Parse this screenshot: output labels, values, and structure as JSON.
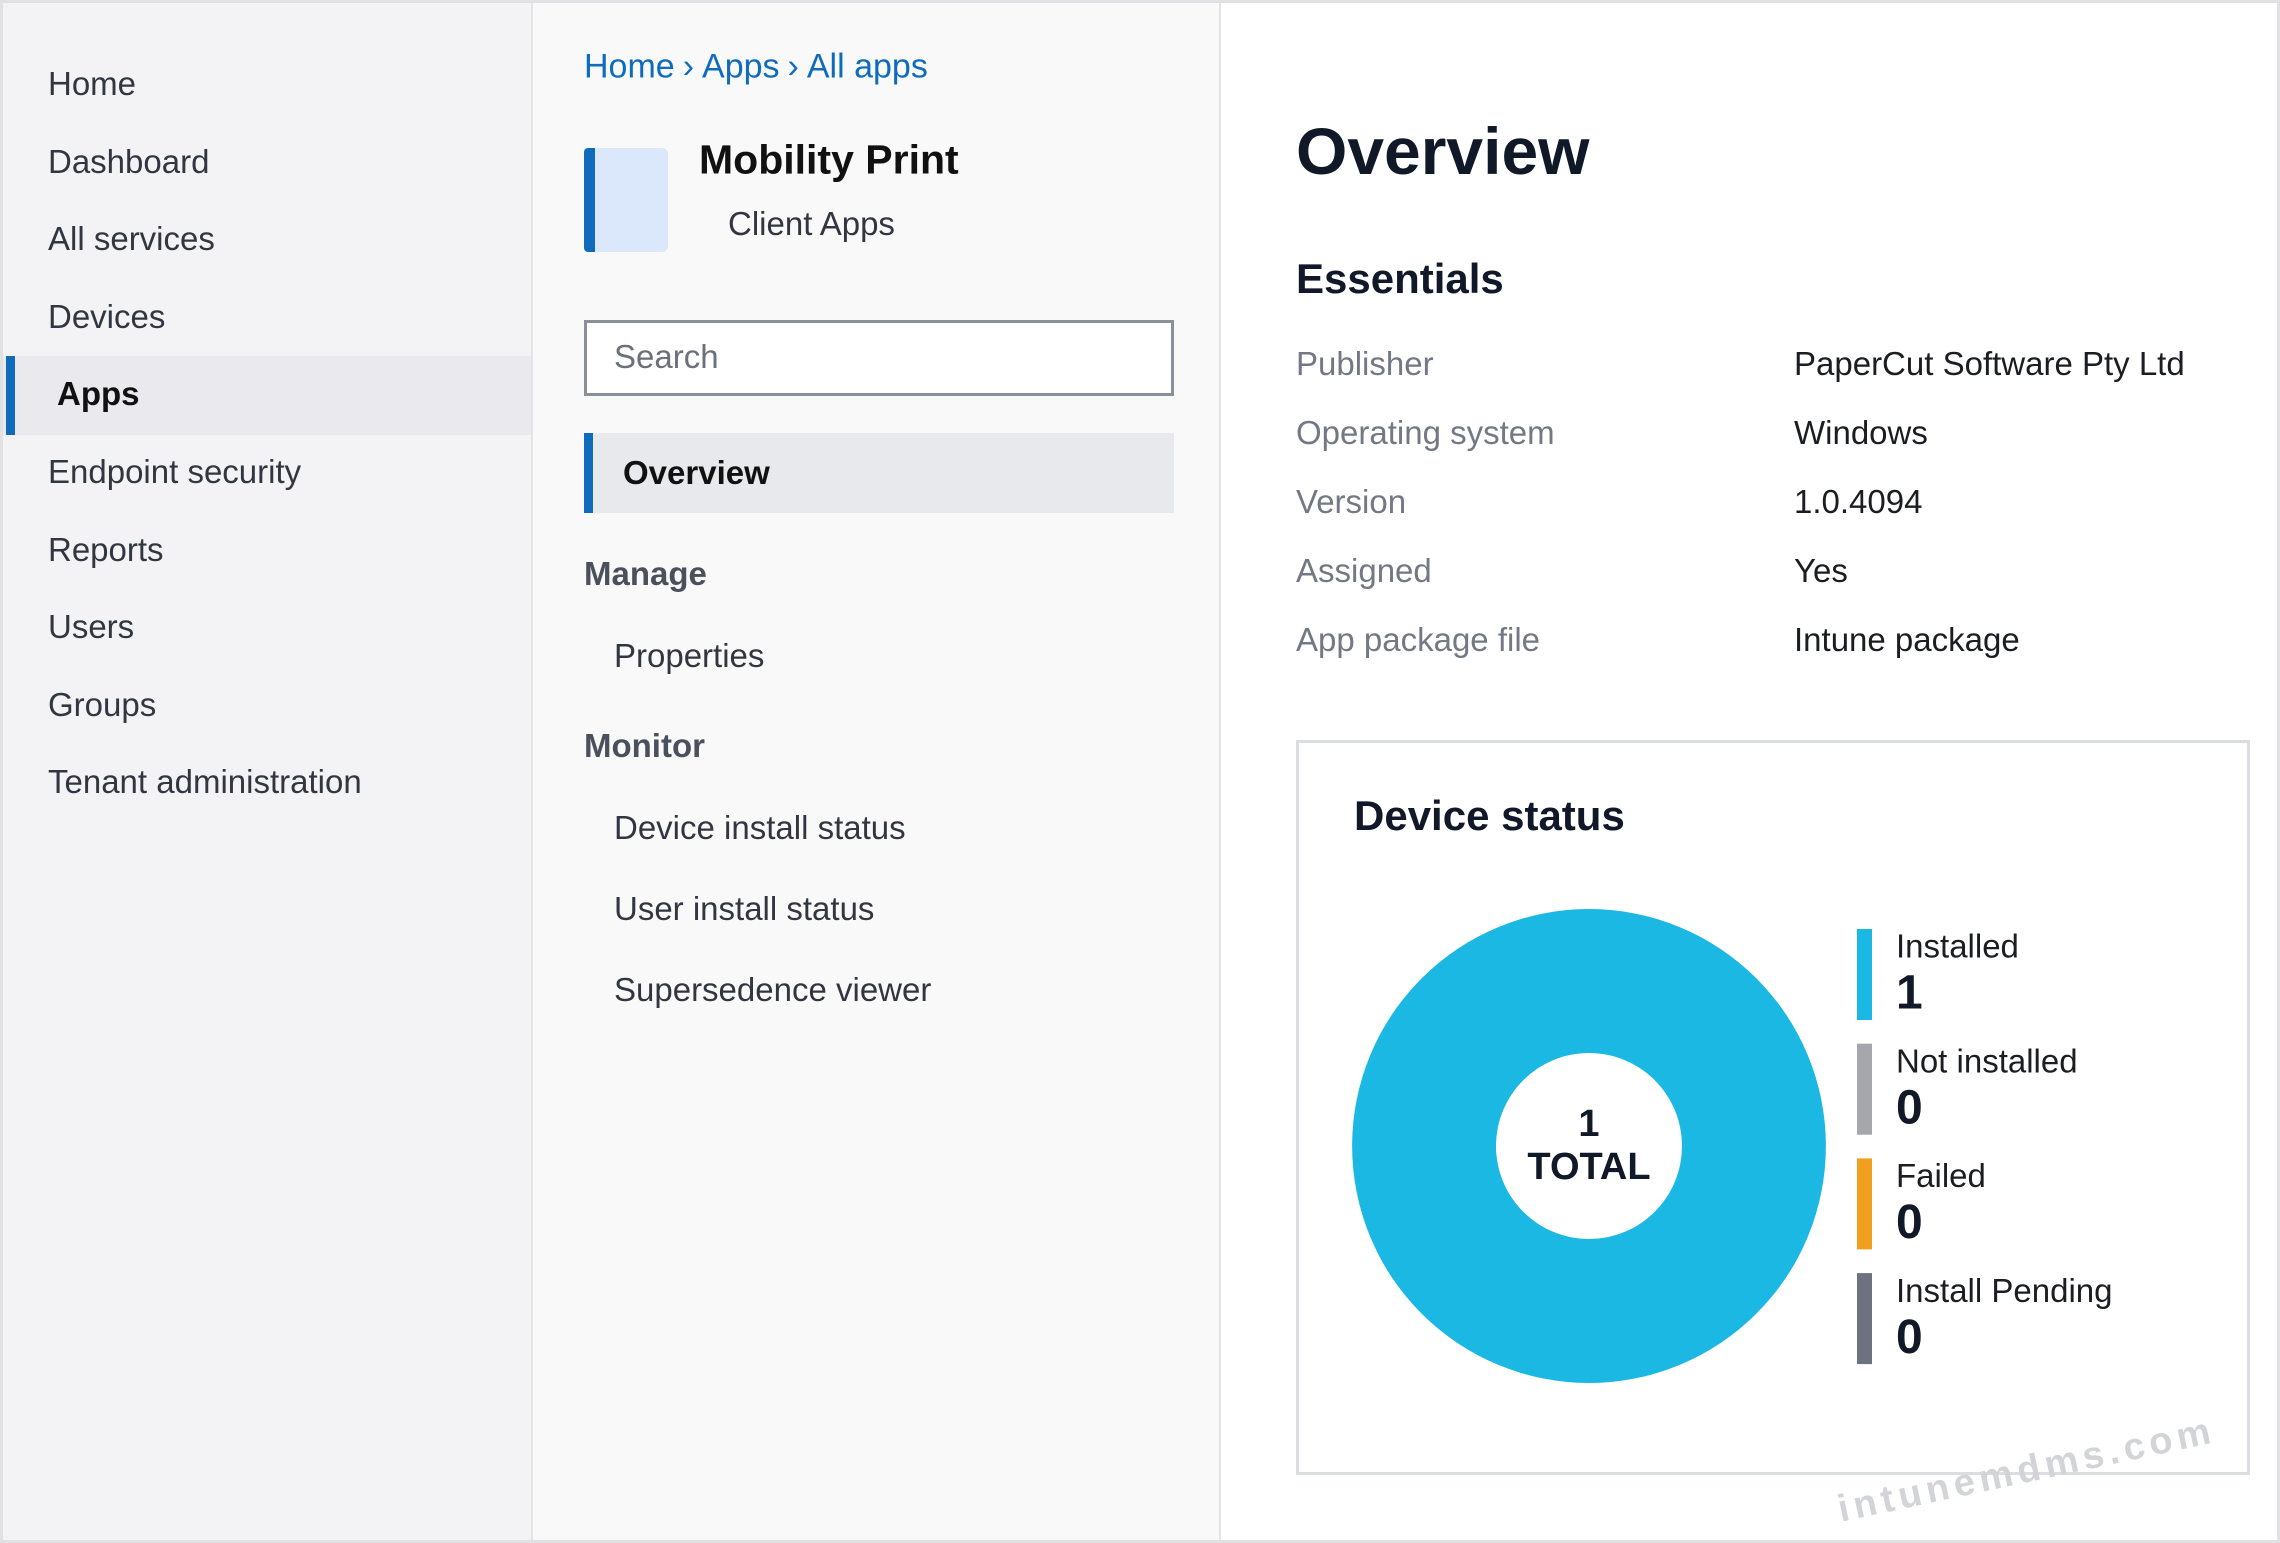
{
  "sidebar": {
    "items": [
      "Home",
      "Dashboard",
      "All services",
      "Devices",
      "Apps",
      "Endpoint security",
      "Reports",
      "Users",
      "Groups",
      "Tenant administration"
    ],
    "selected": "Apps"
  },
  "breadcrumb": {
    "items": [
      "Home",
      "Apps",
      "All apps"
    ],
    "separator": "›"
  },
  "app": {
    "title": "Mobility Print",
    "subtitle": "Client Apps"
  },
  "search_placeholder": "Search",
  "menu": {
    "selected": "Overview",
    "sections": [
      {
        "title": "Manage",
        "items": [
          "Properties"
        ]
      },
      {
        "title": "Monitor",
        "items": [
          "Device install status",
          "User install status",
          "Supersedence viewer"
        ]
      }
    ]
  },
  "overview": {
    "title": "Overview",
    "essentials_title": "Essentials",
    "rows": [
      [
        "Publisher",
        "PaperCut Software Pty Ltd"
      ],
      [
        "Operating system",
        "Windows"
      ],
      [
        "Version",
        "1.0.4094"
      ],
      [
        "Assigned",
        "Yes"
      ],
      [
        "App package file",
        "Intune package"
      ]
    ]
  },
  "chart_data": {
    "type": "donut",
    "title": "Device status",
    "categories": [
      "Installed",
      "Not installed",
      "Failed",
      "Install Pending"
    ],
    "values": [
      1,
      0,
      0,
      0
    ],
    "colors": [
      "#1ab8e3",
      "#a6a6ad",
      "#f0a01e",
      "#6e7180"
    ],
    "total": 1,
    "total_label": "TOTAL"
  },
  "watermark": "intunemdms.com"
}
